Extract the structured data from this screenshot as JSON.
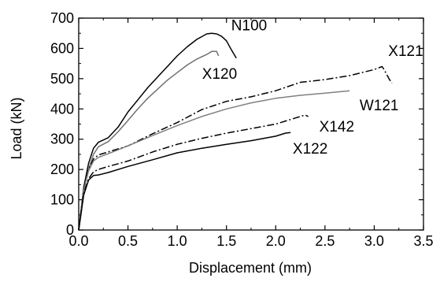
{
  "chart_data": {
    "type": "line",
    "xlabel": "Displacement (mm)",
    "ylabel": "Load (kN)",
    "xlim": [
      0.0,
      3.5
    ],
    "ylim": [
      0,
      700
    ],
    "xticks": [
      "0.0",
      "0.5",
      "1.0",
      "1.5",
      "2.0",
      "2.5",
      "3.0",
      "3.5"
    ],
    "yticks": [
      "0",
      "100",
      "200",
      "300",
      "400",
      "500",
      "600",
      "700"
    ],
    "grid": false,
    "legend": "none (series labeled directly on the curves)",
    "series": [
      {
        "name": "N100",
        "color": "#000000",
        "style": "solid",
        "points": [
          [
            0.0,
            0
          ],
          [
            0.05,
            140
          ],
          [
            0.1,
            220
          ],
          [
            0.15,
            270
          ],
          [
            0.2,
            290
          ],
          [
            0.3,
            305
          ],
          [
            0.4,
            340
          ],
          [
            0.5,
            390
          ],
          [
            0.6,
            430
          ],
          [
            0.7,
            470
          ],
          [
            0.8,
            505
          ],
          [
            0.9,
            540
          ],
          [
            1.0,
            575
          ],
          [
            1.1,
            605
          ],
          [
            1.2,
            630
          ],
          [
            1.3,
            648
          ],
          [
            1.35,
            650
          ],
          [
            1.4,
            648
          ],
          [
            1.45,
            640
          ],
          [
            1.5,
            625
          ],
          [
            1.55,
            595
          ],
          [
            1.6,
            568
          ]
        ]
      },
      {
        "name": "X120",
        "color": "#707070",
        "style": "solid",
        "points": [
          [
            0.0,
            0
          ],
          [
            0.05,
            130
          ],
          [
            0.1,
            200
          ],
          [
            0.15,
            250
          ],
          [
            0.2,
            275
          ],
          [
            0.3,
            292
          ],
          [
            0.4,
            325
          ],
          [
            0.5,
            362
          ],
          [
            0.6,
            400
          ],
          [
            0.7,
            435
          ],
          [
            0.8,
            465
          ],
          [
            0.9,
            495
          ],
          [
            1.0,
            520
          ],
          [
            1.1,
            545
          ],
          [
            1.2,
            565
          ],
          [
            1.3,
            580
          ],
          [
            1.35,
            590
          ],
          [
            1.4,
            590
          ],
          [
            1.42,
            575
          ]
        ]
      },
      {
        "name": "X121",
        "color": "#000000",
        "style": "dashdot",
        "points": [
          [
            0.0,
            0
          ],
          [
            0.05,
            130
          ],
          [
            0.1,
            200
          ],
          [
            0.15,
            235
          ],
          [
            0.2,
            248
          ],
          [
            0.3,
            258
          ],
          [
            0.5,
            278
          ],
          [
            0.75,
            318
          ],
          [
            1.0,
            355
          ],
          [
            1.25,
            398
          ],
          [
            1.5,
            425
          ],
          [
            1.75,
            440
          ],
          [
            2.0,
            460
          ],
          [
            2.25,
            488
          ],
          [
            2.5,
            497
          ],
          [
            2.75,
            510
          ],
          [
            3.0,
            530
          ],
          [
            3.08,
            540
          ],
          [
            3.1,
            530
          ],
          [
            3.15,
            500
          ],
          [
            3.18,
            485
          ]
        ]
      },
      {
        "name": "W121",
        "color": "#808080",
        "style": "solid",
        "points": [
          [
            0.0,
            0
          ],
          [
            0.05,
            130
          ],
          [
            0.1,
            195
          ],
          [
            0.15,
            228
          ],
          [
            0.2,
            240
          ],
          [
            0.3,
            252
          ],
          [
            0.5,
            278
          ],
          [
            0.75,
            312
          ],
          [
            1.0,
            345
          ],
          [
            1.25,
            375
          ],
          [
            1.5,
            400
          ],
          [
            1.75,
            420
          ],
          [
            2.0,
            435
          ],
          [
            2.25,
            445
          ],
          [
            2.5,
            452
          ],
          [
            2.75,
            460
          ]
        ]
      },
      {
        "name": "X142",
        "color": "#000000",
        "style": "dashdot",
        "points": [
          [
            0.0,
            0
          ],
          [
            0.05,
            120
          ],
          [
            0.1,
            170
          ],
          [
            0.15,
            192
          ],
          [
            0.2,
            200
          ],
          [
            0.3,
            210
          ],
          [
            0.5,
            228
          ],
          [
            0.75,
            258
          ],
          [
            1.0,
            283
          ],
          [
            1.25,
            303
          ],
          [
            1.5,
            320
          ],
          [
            1.75,
            335
          ],
          [
            2.0,
            350
          ],
          [
            2.2,
            370
          ],
          [
            2.3,
            380
          ],
          [
            2.33,
            375
          ]
        ]
      },
      {
        "name": "X122",
        "color": "#000000",
        "style": "solid",
        "points": [
          [
            0.0,
            0
          ],
          [
            0.05,
            115
          ],
          [
            0.1,
            165
          ],
          [
            0.15,
            180
          ],
          [
            0.2,
            182
          ],
          [
            0.3,
            190
          ],
          [
            0.5,
            210
          ],
          [
            0.75,
            232
          ],
          [
            1.0,
            255
          ],
          [
            1.25,
            270
          ],
          [
            1.5,
            283
          ],
          [
            1.75,
            295
          ],
          [
            2.0,
            310
          ],
          [
            2.1,
            320
          ],
          [
            2.15,
            322
          ]
        ]
      }
    ],
    "annotations": [
      {
        "text": "N100",
        "x": 1.73,
        "y": 660
      },
      {
        "text": "X120",
        "x": 1.43,
        "y": 500
      },
      {
        "text": "X121",
        "x": 3.32,
        "y": 575
      },
      {
        "text": "W121",
        "x": 3.05,
        "y": 395
      },
      {
        "text": "X142",
        "x": 2.62,
        "y": 325
      },
      {
        "text": "X122",
        "x": 2.35,
        "y": 252
      }
    ]
  }
}
